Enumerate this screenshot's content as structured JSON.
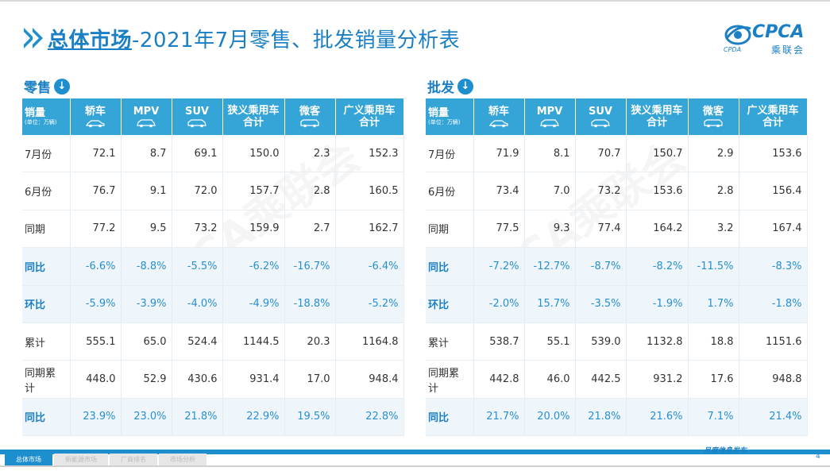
{
  "header": {
    "title_bold": "总体市场",
    "title_rest": "-2021年7月零售、批发销量分析表",
    "logo_word": "CPCA",
    "logo_sub": "乘联会",
    "logo_small": "CPDA"
  },
  "watermark": "CPCA乘联会",
  "columns": {
    "unit_main": "销量",
    "unit_sub": "(单位：万辆)",
    "items": [
      {
        "label": "轿车",
        "icon": "sedan-icon"
      },
      {
        "label": "MPV",
        "icon": "mpv-icon"
      },
      {
        "label": "SUV",
        "icon": "suv-icon"
      },
      {
        "label": "狭义乘用车\n合计",
        "icon": ""
      },
      {
        "label": "微客",
        "icon": "minivan-icon"
      },
      {
        "label": "广义乘用车\n合计",
        "icon": ""
      }
    ]
  },
  "retail": {
    "label": "零售",
    "rows": [
      {
        "label": "7月份",
        "values": [
          "72.1",
          "8.7",
          "69.1",
          "150.0",
          "2.3",
          "152.3"
        ],
        "highlight": false
      },
      {
        "label": "6月份",
        "values": [
          "76.7",
          "9.1",
          "72.0",
          "157.7",
          "2.8",
          "160.5"
        ],
        "highlight": false
      },
      {
        "label": "同期",
        "values": [
          "77.2",
          "9.5",
          "73.2",
          "159.9",
          "2.7",
          "162.7"
        ],
        "highlight": false
      },
      {
        "label": "同比",
        "values": [
          "-6.6%",
          "-8.8%",
          "-5.5%",
          "-6.2%",
          "-16.7%",
          "-6.4%"
        ],
        "highlight": true
      },
      {
        "label": "环比",
        "values": [
          "-5.9%",
          "-3.9%",
          "-4.0%",
          "-4.9%",
          "-18.8%",
          "-5.2%"
        ],
        "highlight": true
      },
      {
        "label": "累计",
        "values": [
          "555.1",
          "65.0",
          "524.4",
          "1144.5",
          "20.3",
          "1164.8"
        ],
        "highlight": false
      },
      {
        "label": "同期累计",
        "values": [
          "448.0",
          "52.9",
          "430.6",
          "931.4",
          "17.0",
          "948.4"
        ],
        "highlight": false
      },
      {
        "label": "同比",
        "values": [
          "23.9%",
          "23.0%",
          "21.8%",
          "22.9%",
          "19.5%",
          "22.8%"
        ],
        "highlight": true
      }
    ]
  },
  "wholesale": {
    "label": "批发",
    "rows": [
      {
        "label": "7月份",
        "values": [
          "71.9",
          "8.1",
          "70.7",
          "150.7",
          "2.9",
          "153.6"
        ],
        "highlight": false
      },
      {
        "label": "6月份",
        "values": [
          "73.4",
          "7.0",
          "73.2",
          "153.6",
          "2.8",
          "156.4"
        ],
        "highlight": false
      },
      {
        "label": "同期",
        "values": [
          "77.5",
          "9.3",
          "77.4",
          "164.2",
          "3.2",
          "167.4"
        ],
        "highlight": false
      },
      {
        "label": "同比",
        "values": [
          "-7.2%",
          "-12.7%",
          "-8.7%",
          "-8.2%",
          "-11.5%",
          "-8.3%"
        ],
        "highlight": true
      },
      {
        "label": "环比",
        "values": [
          "-2.0%",
          "15.7%",
          "-3.5%",
          "-1.9%",
          "1.7%",
          "-1.8%"
        ],
        "highlight": true
      },
      {
        "label": "累计",
        "values": [
          "538.7",
          "55.1",
          "539.0",
          "1132.8",
          "18.8",
          "1151.6"
        ],
        "highlight": false
      },
      {
        "label": "同期累计",
        "values": [
          "442.8",
          "46.0",
          "442.5",
          "931.2",
          "17.6",
          "948.8"
        ],
        "highlight": false
      },
      {
        "label": "同比",
        "values": [
          "21.7%",
          "20.0%",
          "21.8%",
          "21.6%",
          "7.1%",
          "21.4%"
        ],
        "highlight": true
      }
    ]
  },
  "footer": {
    "tabs": [
      {
        "label": "总体市场",
        "active": true
      },
      {
        "label": "新能源市场",
        "active": false
      },
      {
        "label": "厂商排名",
        "active": false
      },
      {
        "label": "市场分析",
        "active": false
      }
    ],
    "right_text": "月度信息发布",
    "page_number": "4"
  },
  "colors": {
    "accent": "#1e8fce",
    "header_bg": "#35a4d6",
    "highlight_bg": "#eef6fb"
  }
}
